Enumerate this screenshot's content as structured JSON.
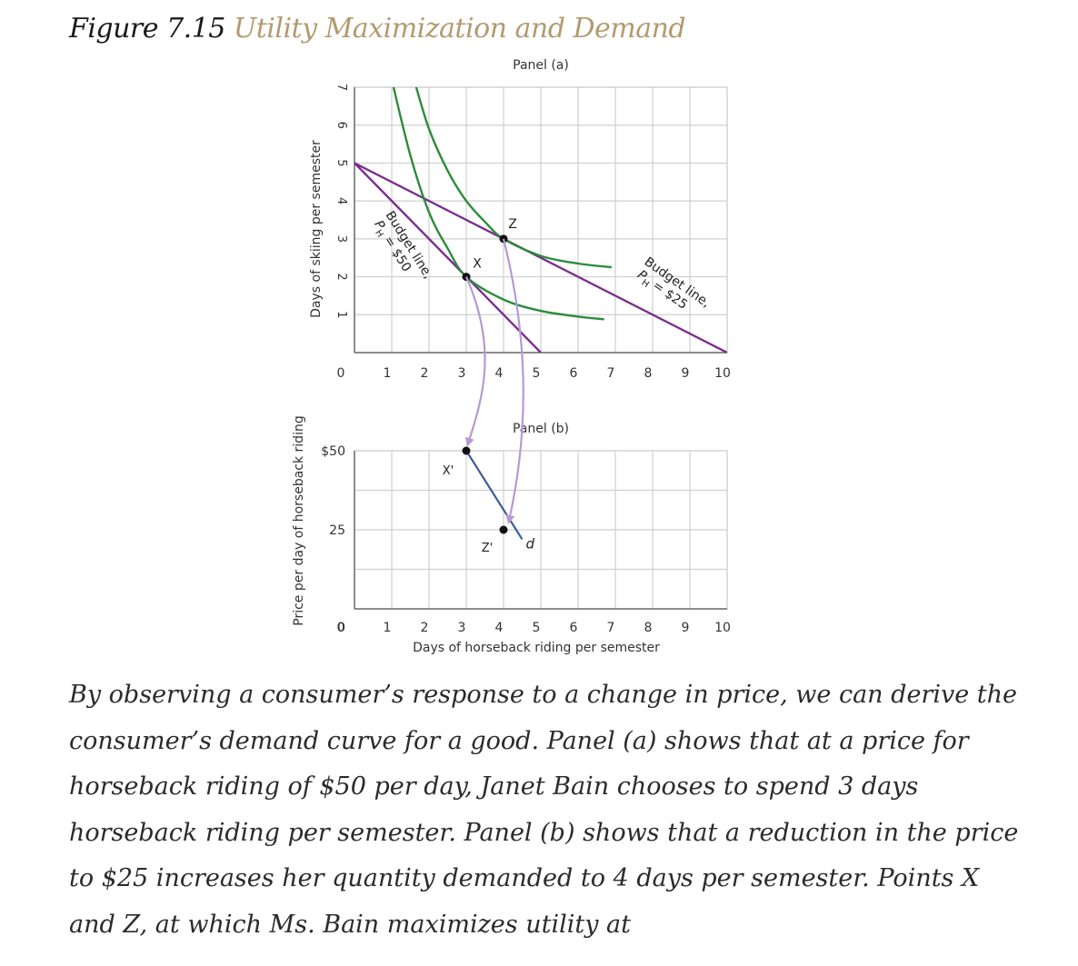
{
  "figure": {
    "number": "Figure 7.15",
    "title": "Utility Maximization and Demand",
    "title_color": "#b39a6e"
  },
  "chart_data": [
    {
      "type": "line",
      "panel_title": "Panel (a)",
      "xlabel": "",
      "ylabel": "Days of skiing per semester",
      "xlim": [
        0,
        10
      ],
      "ylim": [
        0,
        7
      ],
      "x_ticks": [
        "1",
        "2",
        "3",
        "4",
        "5",
        "6",
        "7",
        "8",
        "9",
        "10"
      ],
      "x_origin_label": "0",
      "y_ticks": [
        "0",
        "1",
        "2",
        "3",
        "4",
        "5",
        "6",
        "7"
      ],
      "grid": true,
      "series": [
        {
          "name": "Budget line, PH = $50",
          "color": "#7b2f8f",
          "points": [
            [
              0,
              5
            ],
            [
              5,
              0
            ]
          ]
        },
        {
          "name": "Budget line, PH = $25",
          "color": "#7b2f8f",
          "points": [
            [
              0,
              5
            ],
            [
              10,
              0
            ]
          ]
        },
        {
          "name": "",
          "color": "#2e8b3a",
          "points": [
            [
              1,
              7.2
            ],
            [
              1.5,
              5.2
            ],
            [
              2,
              3.7
            ],
            [
              2.5,
              2.75
            ],
            [
              3,
              2
            ],
            [
              4,
              1.4
            ],
            [
              5,
              1.1
            ],
            [
              6,
              0.95
            ],
            [
              6.7,
              0.88
            ]
          ]
        },
        {
          "name": "",
          "color": "#2e8b3a",
          "points": [
            [
              1.6,
              7.2
            ],
            [
              2,
              5.9
            ],
            [
              2.5,
              4.8
            ],
            [
              3,
              4
            ],
            [
              3.5,
              3.45
            ],
            [
              4,
              3
            ],
            [
              5,
              2.55
            ],
            [
              6,
              2.35
            ],
            [
              6.9,
              2.25
            ]
          ]
        }
      ],
      "points": [
        {
          "label": "X",
          "x": 3,
          "y": 2
        },
        {
          "label": "Z",
          "x": 4,
          "y": 3
        }
      ],
      "annotations": {
        "budget_50": {
          "line1": "Budget line,",
          "line2": "P",
          "sub": "H",
          "line2_rest": " = $50"
        },
        "budget_25": {
          "line1": "Budget line,",
          "line2": "P",
          "sub": "H",
          "line2_rest": " = $25"
        }
      }
    },
    {
      "type": "line",
      "panel_title": "Panel (b)",
      "xlabel": "Days of horseback riding per semester",
      "ylabel": "Price per day of horseback riding",
      "xlim": [
        0,
        10
      ],
      "ylim": [
        0,
        50
      ],
      "x_ticks": [
        "1",
        "2",
        "3",
        "4",
        "5",
        "6",
        "7",
        "8",
        "9",
        "10"
      ],
      "x_origin_label": "0",
      "y_ticks": [
        {
          "value": 0,
          "label": "0"
        },
        {
          "value": 25,
          "label": "25"
        },
        {
          "value": 50,
          "label": "$50"
        }
      ],
      "grid": true,
      "series": [
        {
          "name": "d",
          "color": "#3d5b9e",
          "points": [
            [
              3,
              50
            ],
            [
              4.5,
              22
            ]
          ]
        }
      ],
      "points": [
        {
          "label": "X'",
          "x": 3,
          "y": 50
        },
        {
          "label": "Z'",
          "x": 4,
          "y": 25
        }
      ],
      "arrow_color": "#b59ad3"
    }
  ],
  "caption": "By observing a consumer’s response to a change in price, we can derive the consumer’s demand curve for a good. Panel (a) shows that at a price for horseback riding of $50 per day, Janet Bain chooses to spend 3 days horseback riding per semester. Panel (b) shows that a reduction in the price to $25 increases her quantity demanded to 4 days per semester. Points X and Z, at which Ms. Bain maximizes utility at"
}
